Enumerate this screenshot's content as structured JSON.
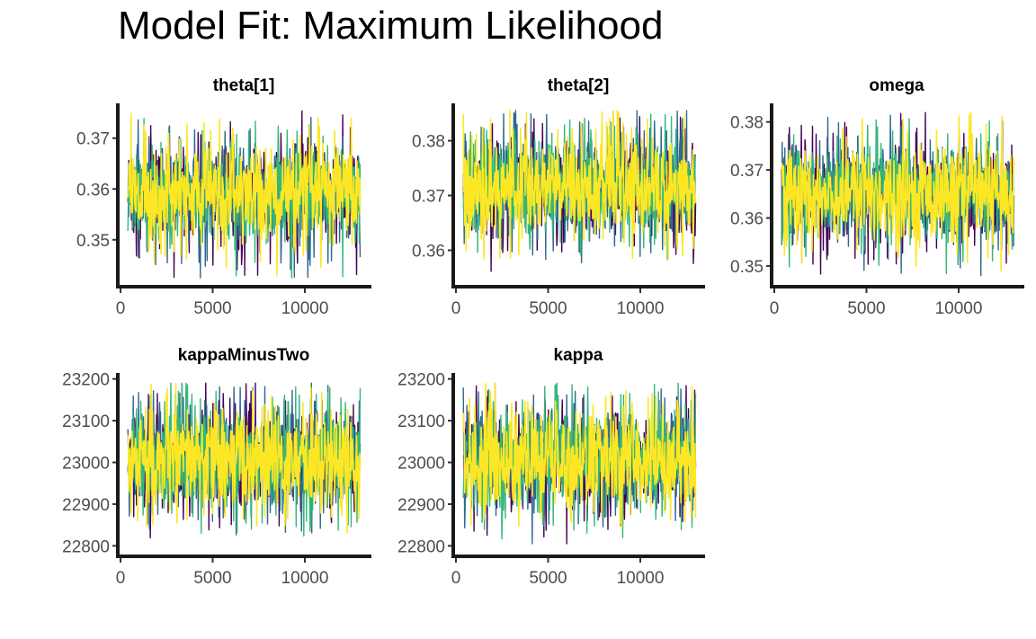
{
  "title": "Model Fit: Maximum Likelihood",
  "colors": {
    "chains": [
      "#440154",
      "#31688E",
      "#35B779",
      "#FDE725"
    ]
  },
  "chart_data": [
    {
      "type": "line",
      "title": "theta[1]",
      "xlabel": "",
      "ylabel": "",
      "xlim": [
        400,
        13000
      ],
      "x_ticks": [
        0,
        5000,
        10000
      ],
      "x_tick_labels": [
        "0",
        "5000",
        "10000"
      ],
      "ylim": [
        0.342,
        0.3765
      ],
      "y_ticks": [
        0.35,
        0.36,
        0.37
      ],
      "y_tick_labels": [
        "0.35",
        "0.36",
        "0.37"
      ],
      "center": 0.359,
      "band": [
        0.3495,
        0.3685
      ],
      "spike_range": [
        0.3425,
        0.3755
      ],
      "series": [
        {
          "values": []
        },
        {
          "values": []
        },
        {
          "values": []
        },
        {
          "values": []
        }
      ]
    },
    {
      "type": "line",
      "title": "theta[2]",
      "xlabel": "",
      "ylabel": "",
      "xlim": [
        400,
        13000
      ],
      "x_ticks": [
        0,
        5000,
        10000
      ],
      "x_tick_labels": [
        "0",
        "5000",
        "10000"
      ],
      "ylim": [
        0.3545,
        0.3865
      ],
      "y_ticks": [
        0.36,
        0.37,
        0.38
      ],
      "y_tick_labels": [
        "0.36",
        "0.37",
        "0.38"
      ],
      "center": 0.3715,
      "band": [
        0.3625,
        0.381
      ],
      "spike_range": [
        0.3555,
        0.3855
      ],
      "series": [
        {
          "values": []
        },
        {
          "values": []
        },
        {
          "values": []
        },
        {
          "values": []
        }
      ]
    },
    {
      "type": "line",
      "title": "omega",
      "xlabel": "",
      "ylabel": "",
      "xlim": [
        400,
        13000
      ],
      "x_ticks": [
        0,
        5000,
        10000
      ],
      "x_tick_labels": [
        "0",
        "5000",
        "10000"
      ],
      "ylim": [
        0.347,
        0.3835
      ],
      "y_ticks": [
        0.35,
        0.36,
        0.37,
        0.38
      ],
      "y_tick_labels": [
        "0.35",
        "0.36",
        "0.37",
        "0.38"
      ],
      "center": 0.365,
      "band": [
        0.355,
        0.375
      ],
      "spike_range": [
        0.348,
        0.382
      ],
      "series": [
        {
          "values": []
        },
        {
          "values": []
        },
        {
          "values": []
        },
        {
          "values": []
        }
      ]
    },
    {
      "type": "line",
      "title": "kappaMinusTwo",
      "xlabel": "",
      "ylabel": "",
      "xlim": [
        400,
        13000
      ],
      "x_ticks": [
        0,
        5000,
        10000
      ],
      "x_tick_labels": [
        "0",
        "5000",
        "10000"
      ],
      "ylim": [
        22790,
        23210
      ],
      "y_ticks": [
        22800,
        22900,
        23000,
        23100,
        23200
      ],
      "y_tick_labels": [
        "22800",
        "22900",
        "23000",
        "23100",
        "23200"
      ],
      "center": 23005,
      "band": [
        22880,
        23130
      ],
      "spike_range": [
        22805,
        23190
      ],
      "series": [
        {
          "values": []
        },
        {
          "values": []
        },
        {
          "values": []
        },
        {
          "values": []
        }
      ]
    },
    {
      "type": "line",
      "title": "kappa",
      "xlabel": "",
      "ylabel": "",
      "xlim": [
        400,
        13000
      ],
      "x_ticks": [
        0,
        5000,
        10000
      ],
      "x_tick_labels": [
        "0",
        "5000",
        "10000"
      ],
      "ylim": [
        22790,
        23210
      ],
      "y_ticks": [
        22800,
        22900,
        23000,
        23100,
        23200
      ],
      "y_tick_labels": [
        "22800",
        "22900",
        "23000",
        "23100",
        "23200"
      ],
      "center": 23005,
      "band": [
        22880,
        23130
      ],
      "spike_range": [
        22805,
        23190
      ],
      "series": [
        {
          "values": []
        },
        {
          "values": []
        },
        {
          "values": []
        },
        {
          "values": []
        }
      ]
    }
  ]
}
